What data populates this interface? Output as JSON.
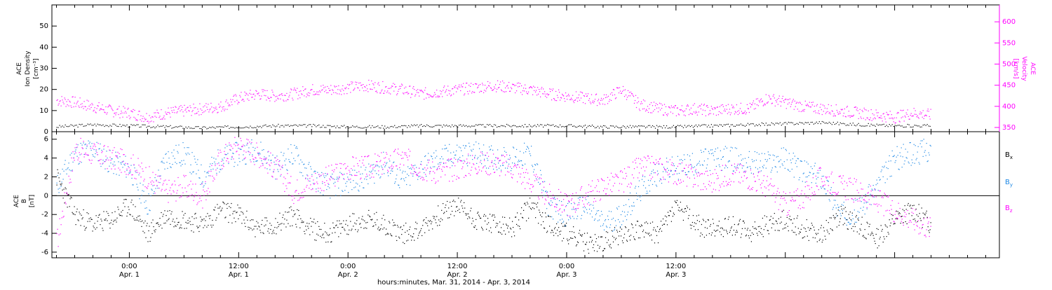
{
  "chart_data": [
    {
      "type": "scatter",
      "panel": "top",
      "ylabel_left": [
        "ACE",
        "Ion Density",
        "[cm⁻³]"
      ],
      "ylabel_right": [
        "ACE",
        "Velocity",
        "[km/s]"
      ],
      "ylim_left": [
        0,
        60
      ],
      "yticks_left": [
        0,
        10,
        20,
        30,
        40,
        50
      ],
      "ylim_right": [
        340,
        640
      ],
      "yticks_right": [
        350,
        400,
        450,
        500,
        550,
        600
      ],
      "series": [
        {
          "name": "Ion Density",
          "axis": "left",
          "color": "#000000",
          "x": [
            -8,
            -4,
            0,
            4,
            8,
            12,
            16,
            20,
            24,
            28,
            32,
            36,
            40,
            44,
            48,
            52,
            56,
            60,
            64,
            68,
            72,
            76,
            80,
            84,
            88
          ],
          "y": [
            2.5,
            3.5,
            3.0,
            2.5,
            2.0,
            2.5,
            3.0,
            3.0,
            2.5,
            2.5,
            3.0,
            3.0,
            3.0,
            3.0,
            3.0,
            2.5,
            2.5,
            2.5,
            3.0,
            3.5,
            4.0,
            4.5,
            3.5,
            3.0,
            3.0
          ]
        },
        {
          "name": "Velocity",
          "axis": "right",
          "color": "#ff00ff",
          "x": [
            -8,
            -6,
            -4,
            -2,
            0,
            2,
            4,
            6,
            8,
            10,
            12,
            14,
            16,
            18,
            20,
            22,
            24,
            26,
            28,
            30,
            32,
            34,
            36,
            38,
            40,
            42,
            44,
            46,
            48,
            50,
            52,
            54,
            56,
            58,
            60,
            62,
            64,
            66,
            68,
            70,
            72,
            74,
            76,
            78,
            80,
            82,
            84,
            86,
            88
          ],
          "y": [
            415,
            410,
            400,
            390,
            385,
            375,
            385,
            390,
            395,
            400,
            420,
            430,
            425,
            430,
            440,
            440,
            445,
            450,
            445,
            440,
            430,
            435,
            440,
            445,
            450,
            445,
            440,
            430,
            425,
            420,
            415,
            440,
            405,
            395,
            390,
            395,
            390,
            395,
            395,
            420,
            410,
            400,
            395,
            390,
            385,
            380,
            375,
            385,
            380
          ]
        }
      ]
    },
    {
      "type": "scatter",
      "panel": "bottom",
      "ylabel": [
        "ACE",
        "B",
        "[nT]"
      ],
      "ylim": [
        -6.6,
        6.8
      ],
      "yticks": [
        -6,
        -4,
        -2,
        0,
        2,
        4,
        6
      ],
      "legend": [
        "Bx",
        "By",
        "Bz"
      ],
      "legend_placement": "right",
      "series": [
        {
          "name": "Bx",
          "color": "#000000",
          "x": [
            -8,
            -6,
            -4,
            -2,
            0,
            2,
            4,
            6,
            8,
            10,
            12,
            14,
            16,
            18,
            20,
            22,
            24,
            26,
            28,
            30,
            32,
            34,
            36,
            38,
            40,
            42,
            44,
            46,
            48,
            50,
            52,
            54,
            56,
            58,
            60,
            62,
            64,
            66,
            68,
            70,
            72,
            74,
            76,
            78,
            80,
            82,
            84,
            86,
            88
          ],
          "y": [
            2.0,
            -2.0,
            -3.0,
            -2.5,
            -1.0,
            -4.0,
            -2.0,
            -2.5,
            -3.0,
            -1.5,
            -2.0,
            -3.5,
            -3.0,
            -2.0,
            -3.5,
            -4.0,
            -3.0,
            -2.5,
            -3.0,
            -4.0,
            -3.5,
            -2.0,
            -1.0,
            -2.5,
            -3.0,
            -3.5,
            -1.0,
            -3.0,
            -4.0,
            -5.0,
            -5.0,
            -4.0,
            -3.5,
            -4.0,
            -1.0,
            -3.0,
            -3.5,
            -3.0,
            -4.0,
            -3.0,
            -2.5,
            -3.5,
            -4.0,
            -2.0,
            -3.0,
            -4.5,
            -2.5,
            -1.5,
            -3.0
          ]
        },
        {
          "name": "By",
          "color": "#1e88e5",
          "x": [
            -8,
            -6,
            -4,
            -2,
            0,
            2,
            4,
            6,
            8,
            10,
            12,
            14,
            16,
            18,
            20,
            22,
            24,
            26,
            28,
            30,
            32,
            34,
            36,
            38,
            40,
            42,
            44,
            46,
            48,
            50,
            52,
            54,
            56,
            58,
            60,
            62,
            64,
            66,
            68,
            70,
            72,
            74,
            76,
            78,
            80,
            82,
            84,
            86,
            88
          ],
          "y": [
            1.0,
            4.5,
            5.0,
            3.5,
            3.0,
            -1.0,
            4.0,
            4.5,
            2.0,
            4.0,
            4.5,
            5.0,
            3.0,
            4.5,
            2.0,
            1.0,
            1.5,
            2.0,
            3.5,
            1.5,
            3.0,
            4.0,
            4.5,
            4.5,
            4.0,
            4.0,
            4.5,
            -1.0,
            -2.0,
            -1.0,
            -3.0,
            -2.0,
            0.5,
            2.5,
            3.0,
            3.5,
            4.0,
            4.0,
            3.5,
            3.5,
            4.0,
            2.5,
            2.0,
            -2.0,
            -1.5,
            1.0,
            4.0,
            4.5,
            5.0
          ]
        },
        {
          "name": "Bz",
          "color": "#ff00ff",
          "x": [
            -8,
            -6,
            -4,
            -2,
            0,
            2,
            4,
            6,
            8,
            10,
            12,
            14,
            16,
            18,
            20,
            22,
            24,
            26,
            28,
            30,
            32,
            34,
            36,
            38,
            40,
            42,
            44,
            46,
            48,
            50,
            52,
            54,
            56,
            58,
            60,
            62,
            64,
            66,
            68,
            70,
            72,
            74,
            76,
            78,
            80,
            82,
            84,
            86,
            88
          ],
          "y": [
            -5.0,
            5.0,
            4.5,
            4.0,
            3.5,
            2.0,
            0.5,
            1.0,
            0.0,
            4.0,
            5.5,
            4.5,
            3.0,
            0.5,
            1.5,
            2.0,
            3.0,
            3.0,
            3.5,
            4.0,
            3.0,
            2.5,
            3.0,
            3.5,
            3.5,
            3.0,
            1.5,
            0.0,
            -1.0,
            0.0,
            1.0,
            1.5,
            3.0,
            3.0,
            2.5,
            2.0,
            1.5,
            2.5,
            2.0,
            1.0,
            -1.0,
            0.0,
            2.0,
            1.0,
            0.5,
            -0.5,
            -1.5,
            -2.5,
            -3.5
          ]
        }
      ]
    }
  ],
  "x_axis": {
    "tick_hours": [
      0,
      12,
      24,
      36,
      48,
      60
    ],
    "tick_labels": [
      "0:00",
      "12:00",
      "0:00",
      "12:00",
      "0:00",
      "12:00"
    ],
    "date_labels": [
      "Apr. 1",
      "Apr. 1",
      "Apr. 2",
      "Apr. 2",
      "Apr. 3",
      "Apr. 3"
    ],
    "xlim_hours": [
      -8.5,
      95.5
    ],
    "title": "hours:minutes, Mar. 31, 2014 - Apr. 3, 2014"
  },
  "legend_labels": {
    "bx_main": "B",
    "bx_sub": "x",
    "by_main": "B",
    "by_sub": "y",
    "bz_main": "B",
    "bz_sub": "z"
  },
  "colors": {
    "density": "#000000",
    "velocity": "#ff00ff",
    "bx": "#000000",
    "by": "#1e88e5",
    "bz": "#ff00ff"
  }
}
